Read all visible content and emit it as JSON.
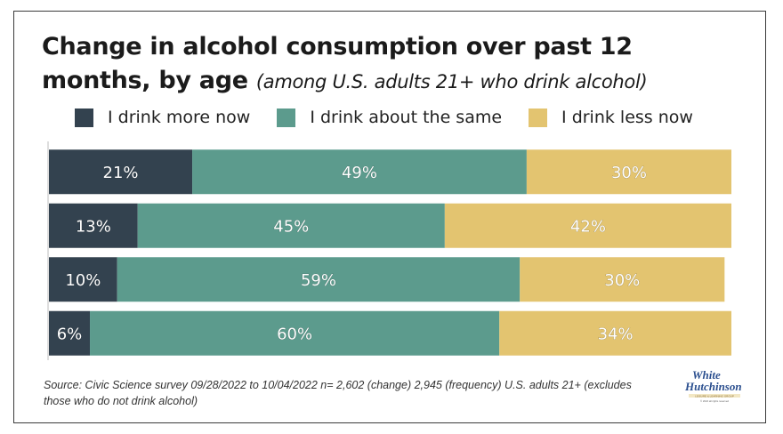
{
  "title_main": "Change in alcohol consumption over past 12 months, by age",
  "title_sub": "(among U.S. adults 21+ who drink alcohol)",
  "legend": {
    "more": "I drink more now",
    "same": "I drink about the same",
    "less": "I drink less now"
  },
  "colors": {
    "more": "#33424f",
    "same": "#5c9b8d",
    "less": "#e3c470"
  },
  "chart_data": {
    "type": "bar",
    "orientation": "horizontal",
    "stacked": true,
    "categories": [
      "",
      "",
      "",
      ""
    ],
    "series": [
      {
        "name": "I drink more now",
        "values": [
          21,
          13,
          10,
          6
        ]
      },
      {
        "name": "I drink about the same",
        "values": [
          49,
          45,
          59,
          60
        ]
      },
      {
        "name": "I drink less now",
        "values": [
          30,
          42,
          30,
          34
        ]
      }
    ],
    "xlim": [
      0,
      100
    ],
    "value_suffix": "%",
    "grid": false,
    "legend_position": "top"
  },
  "source": "Source: Civic Science survey 09/28/2022 to 10/04/2022 n= 2,602 (change) 2,945 (frequency) U.S. adults 21+ (excludes those who do not drink alcohol)",
  "logo": {
    "line1": "White",
    "line2": "Hutchinson",
    "tag": "LEISURE & LEARNING GROUP",
    "copyright": "© 2022 all rights reserved"
  }
}
